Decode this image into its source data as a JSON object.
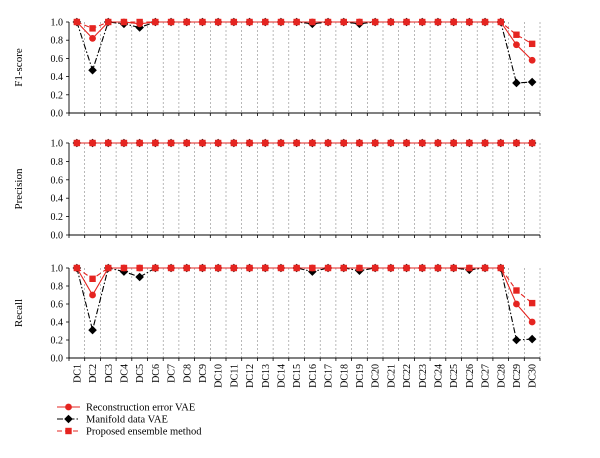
{
  "chart_data": {
    "type": "line",
    "categories": [
      "DC1",
      "DC2",
      "DC3",
      "DC4",
      "DC5",
      "DC6",
      "DC7",
      "DC8",
      "DC9",
      "DC10",
      "DC11",
      "DC12",
      "DC13",
      "DC14",
      "DC15",
      "DC16",
      "DC17",
      "DC18",
      "DC19",
      "DC20",
      "DC21",
      "DC22",
      "DC23",
      "DC24",
      "DC25",
      "DC26",
      "DC27",
      "DC28",
      "DC29",
      "DC30"
    ],
    "legend": {
      "placement": "bottom-left",
      "entries": [
        {
          "label": "Reconstruction error VAE",
          "color": "#e52420",
          "marker": "circle",
          "dash": "solid"
        },
        {
          "label": "Manifold data VAE",
          "color": "#000000",
          "marker": "diamond",
          "dash": "dash-dot"
        },
        {
          "label": "Proposed ensemble method",
          "color": "#e52420",
          "marker": "square",
          "dash": "dashed"
        }
      ]
    },
    "panels": [
      {
        "ylabel": "F1-score",
        "ylim": [
          0,
          1
        ],
        "yticks": [
          "0.0",
          "0.2",
          "0.4",
          "0.6",
          "0.8",
          "1.0"
        ],
        "grid": "vertical-dashed",
        "series": [
          {
            "name": "Manifold data VAE",
            "values": [
              1.0,
              0.47,
              1.0,
              0.98,
              0.94,
              1.0,
              1.0,
              1.0,
              1.0,
              1.0,
              1.0,
              1.0,
              1.0,
              1.0,
              1.0,
              0.98,
              1.0,
              1.0,
              0.98,
              1.0,
              1.0,
              1.0,
              1.0,
              1.0,
              1.0,
              1.0,
              1.0,
              1.0,
              0.33,
              0.34
            ]
          },
          {
            "name": "Reconstruction error VAE",
            "values": [
              1.0,
              0.82,
              1.0,
              1.0,
              0.98,
              1.0,
              1.0,
              1.0,
              1.0,
              1.0,
              1.0,
              1.0,
              1.0,
              1.0,
              1.0,
              1.0,
              1.0,
              1.0,
              1.0,
              1.0,
              1.0,
              1.0,
              1.0,
              1.0,
              1.0,
              1.0,
              1.0,
              1.0,
              0.75,
              0.58
            ]
          },
          {
            "name": "Proposed ensemble method",
            "values": [
              1.0,
              0.93,
              1.0,
              1.0,
              1.0,
              1.0,
              1.0,
              1.0,
              1.0,
              1.0,
              1.0,
              1.0,
              1.0,
              1.0,
              1.0,
              1.0,
              1.0,
              1.0,
              1.0,
              1.0,
              1.0,
              1.0,
              1.0,
              1.0,
              1.0,
              1.0,
              1.0,
              1.0,
              0.86,
              0.76
            ]
          }
        ]
      },
      {
        "ylabel": "Precision",
        "ylim": [
          0,
          1
        ],
        "yticks": [
          "0.0",
          "0.2",
          "0.4",
          "0.6",
          "0.8",
          "1.0"
        ],
        "grid": "vertical-dashed",
        "series": [
          {
            "name": "Manifold data VAE",
            "values": [
              1.0,
              1.0,
              1.0,
              1.0,
              1.0,
              1.0,
              1.0,
              1.0,
              1.0,
              1.0,
              1.0,
              1.0,
              1.0,
              1.0,
              1.0,
              1.0,
              1.0,
              1.0,
              1.0,
              1.0,
              1.0,
              1.0,
              1.0,
              1.0,
              1.0,
              1.0,
              1.0,
              1.0,
              1.0,
              1.0
            ]
          },
          {
            "name": "Reconstruction error VAE",
            "values": [
              1.0,
              1.0,
              1.0,
              1.0,
              1.0,
              1.0,
              1.0,
              1.0,
              1.0,
              1.0,
              1.0,
              1.0,
              1.0,
              1.0,
              1.0,
              1.0,
              1.0,
              1.0,
              1.0,
              1.0,
              1.0,
              1.0,
              1.0,
              1.0,
              1.0,
              1.0,
              1.0,
              1.0,
              1.0,
              1.0
            ]
          },
          {
            "name": "Proposed ensemble method",
            "values": [
              1.0,
              1.0,
              1.0,
              1.0,
              1.0,
              1.0,
              1.0,
              1.0,
              1.0,
              1.0,
              1.0,
              1.0,
              1.0,
              1.0,
              1.0,
              1.0,
              1.0,
              1.0,
              1.0,
              1.0,
              1.0,
              1.0,
              1.0,
              1.0,
              1.0,
              1.0,
              1.0,
              1.0,
              1.0,
              1.0
            ]
          }
        ]
      },
      {
        "ylabel": "Recall",
        "ylim": [
          0,
          1
        ],
        "yticks": [
          "0.0",
          "0.2",
          "0.4",
          "0.6",
          "0.8",
          "1.0"
        ],
        "grid": "vertical-dashed",
        "series": [
          {
            "name": "Manifold data VAE",
            "values": [
              1.0,
              0.31,
              1.0,
              0.96,
              0.9,
              1.0,
              1.0,
              1.0,
              1.0,
              1.0,
              1.0,
              1.0,
              1.0,
              1.0,
              1.0,
              0.96,
              1.0,
              1.0,
              0.97,
              1.0,
              1.0,
              1.0,
              1.0,
              1.0,
              1.0,
              0.98,
              1.0,
              1.0,
              0.2,
              0.21
            ]
          },
          {
            "name": "Reconstruction error VAE",
            "values": [
              1.0,
              0.7,
              1.0,
              1.0,
              1.0,
              1.0,
              1.0,
              1.0,
              1.0,
              1.0,
              1.0,
              1.0,
              1.0,
              1.0,
              1.0,
              1.0,
              1.0,
              1.0,
              1.0,
              1.0,
              1.0,
              1.0,
              1.0,
              1.0,
              1.0,
              1.0,
              1.0,
              1.0,
              0.6,
              0.4
            ]
          },
          {
            "name": "Proposed ensemble method",
            "values": [
              1.0,
              0.88,
              1.0,
              1.0,
              1.0,
              1.0,
              1.0,
              1.0,
              1.0,
              1.0,
              1.0,
              1.0,
              1.0,
              1.0,
              1.0,
              1.0,
              1.0,
              1.0,
              1.0,
              1.0,
              1.0,
              1.0,
              1.0,
              1.0,
              1.0,
              1.0,
              1.0,
              1.0,
              0.75,
              0.61
            ]
          }
        ]
      }
    ]
  }
}
